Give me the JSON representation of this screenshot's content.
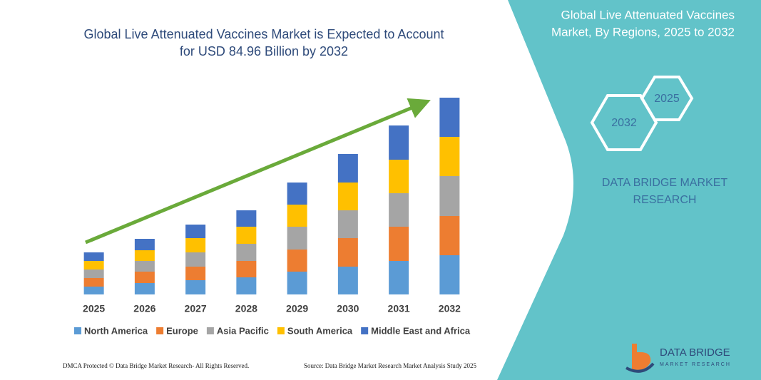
{
  "chart_data": {
    "type": "stacked-bar",
    "title": [
      "Global Live Attenuated Vaccines Market is Expected to Account",
      "for USD 84.96 Billion by 2032"
    ],
    "categories": [
      "2025",
      "2026",
      "2027",
      "2028",
      "2029",
      "2030",
      "2031",
      "2032"
    ],
    "series": [
      {
        "name": "North America",
        "color": "#5b9bd5",
        "values": [
          11,
          16,
          20,
          24,
          32,
          39,
          47,
          55
        ]
      },
      {
        "name": "Europe",
        "color": "#ed7d31",
        "values": [
          12,
          16,
          19,
          23,
          31,
          40,
          48,
          55
        ]
      },
      {
        "name": "Asia Pacific",
        "color": "#a5a5a5",
        "values": [
          12,
          15,
          20,
          24,
          32,
          39,
          47,
          56
        ]
      },
      {
        "name": "South America",
        "color": "#ffc000",
        "values": [
          12,
          15,
          20,
          24,
          31,
          39,
          47,
          55
        ]
      },
      {
        "name": "Middle East and Africa",
        "color": "#4472c4",
        "values": [
          12,
          16,
          19,
          23,
          31,
          40,
          48,
          55
        ]
      }
    ],
    "ylim": [
      0,
      290
    ]
  },
  "panel": {
    "title": [
      "Global Live Attenuated Vaccines",
      "Market, By Regions, 2025 to 2032"
    ],
    "hexagons": [
      "2025",
      "2032"
    ],
    "brand": [
      "DATA BRIDGE MARKET",
      "RESEARCH"
    ]
  },
  "logo": {
    "name": "DATA BRIDGE",
    "tagline": "MARKET RESEARCH"
  },
  "footer": {
    "left": "DMCA Protected © Data Bridge Market Research- All Rights Reserved.",
    "right": "Source: Data Bridge Market Research Market Analysis Study 2025"
  }
}
